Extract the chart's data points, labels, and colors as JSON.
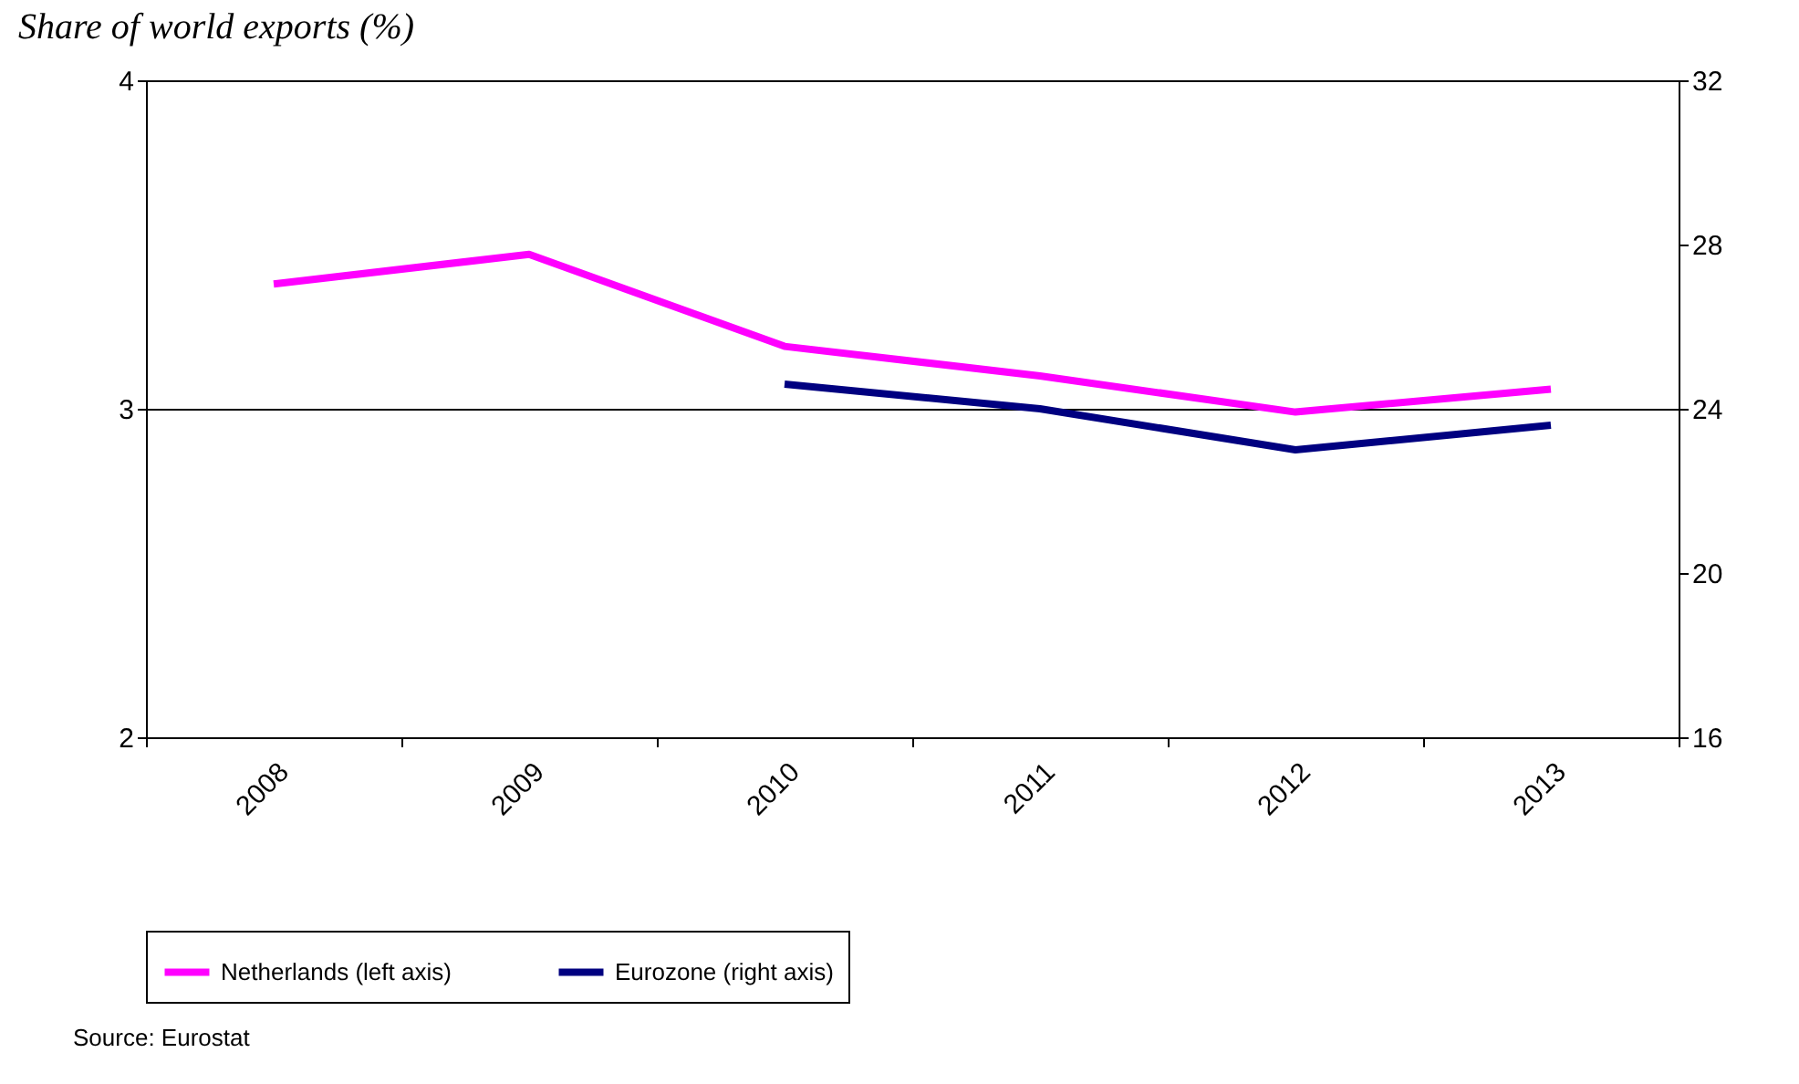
{
  "chart_data": {
    "type": "line",
    "title": "Share of world exports (%)",
    "categories": [
      "2008",
      "2009",
      "2010",
      "2011",
      "2012",
      "2013"
    ],
    "series": [
      {
        "name": "Netherlands (left axis)",
        "color": "#ff00ff",
        "values": [
          3.38,
          3.47,
          3.19,
          3.1,
          2.99,
          3.06
        ]
      },
      {
        "name": "Eurozone (right axis)",
        "color": "#000080",
        "axis": "y2",
        "values": [
          null,
          null,
          24.6,
          24.0,
          23.0,
          23.6
        ]
      }
    ],
    "ylim": [
      2,
      4
    ],
    "yticks": [
      2,
      3,
      4
    ],
    "y2lim": [
      16,
      32
    ],
    "y2ticks": [
      16,
      20,
      24,
      28,
      32
    ],
    "grid": "y",
    "legend": "bottom",
    "marker": "none",
    "line_style": "solid",
    "annotations": [
      "Source: Eurostat"
    ]
  }
}
